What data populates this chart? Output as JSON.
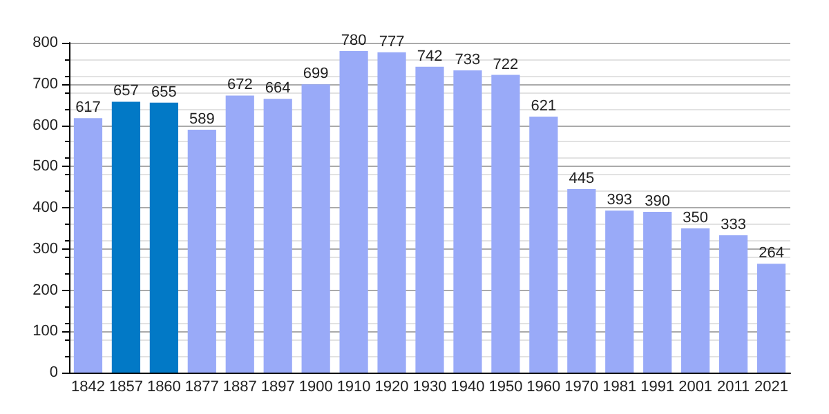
{
  "chart_data": {
    "type": "bar",
    "categories": [
      "1842",
      "1857",
      "1860",
      "1877",
      "1887",
      "1897",
      "1900",
      "1910",
      "1920",
      "1930",
      "1940",
      "1950",
      "1960",
      "1970",
      "1981",
      "1991",
      "2001",
      "2011",
      "2021"
    ],
    "values": [
      617,
      657,
      655,
      589,
      672,
      664,
      699,
      780,
      777,
      742,
      733,
      722,
      621,
      445,
      393,
      390,
      350,
      333,
      264
    ],
    "colors": [
      "#99aaf8",
      "#0279c6",
      "#0279c6",
      "#99aaf8",
      "#99aaf8",
      "#99aaf8",
      "#99aaf8",
      "#99aaf8",
      "#99aaf8",
      "#99aaf8",
      "#99aaf8",
      "#99aaf8",
      "#99aaf8",
      "#99aaf8",
      "#99aaf8",
      "#99aaf8",
      "#99aaf8",
      "#99aaf8",
      "#99aaf8"
    ],
    "ylim": [
      0,
      800
    ],
    "yticks": [
      0,
      100,
      200,
      300,
      400,
      500,
      600,
      700,
      800
    ],
    "grid": "y",
    "data_labels": true
  }
}
